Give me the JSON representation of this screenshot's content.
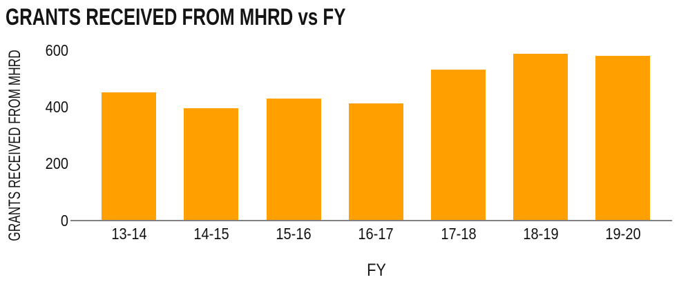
{
  "chart_data": {
    "type": "bar",
    "title": "GRANTS RECEIVED FROM MHRD vs FY",
    "xlabel": "FY",
    "ylabel": "GRANTS RECEIVED FROM MHRD",
    "categories": [
      "13-14",
      "14-15",
      "15-16",
      "16-17",
      "17-18",
      "18-19",
      "19-20"
    ],
    "values": [
      453,
      396,
      429,
      413,
      533,
      589,
      582
    ],
    "ylim": [
      0,
      600
    ],
    "yticks": [
      0,
      200,
      400,
      600
    ],
    "grid": false,
    "legend": false,
    "bar_color": "#FFA000",
    "axis_line_color": "#808080",
    "text_color": "#141414"
  }
}
